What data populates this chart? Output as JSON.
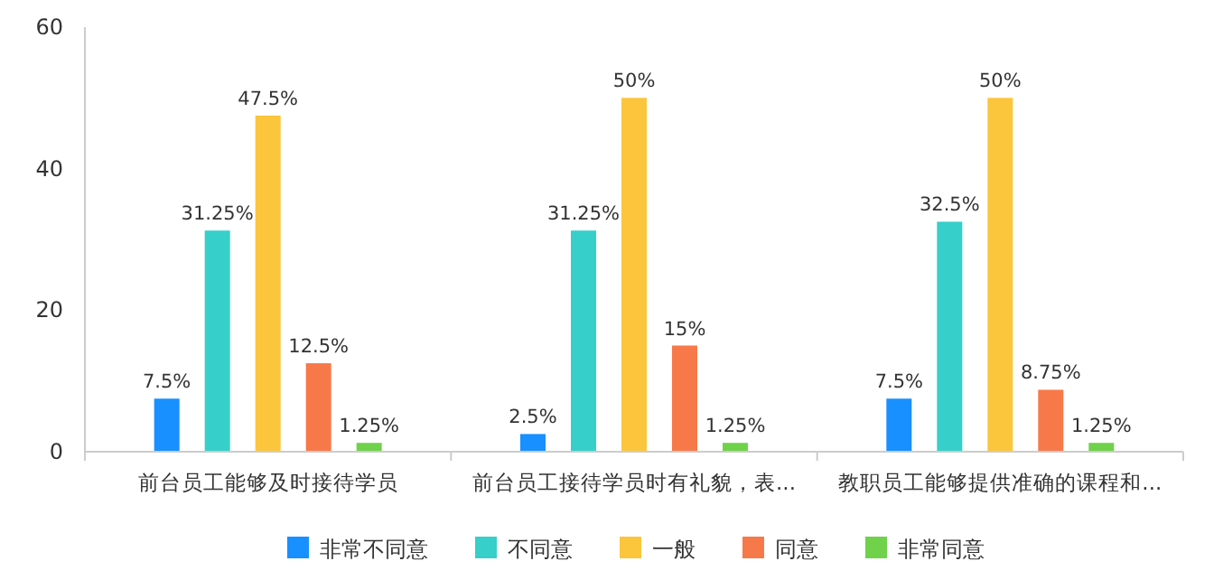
{
  "chart_data": {
    "type": "bar",
    "categories": [
      "前台员工能够及时接待学员",
      "前台员工接待学员时有礼貌，表...",
      "教职员工能够提供准确的课程和..."
    ],
    "series": [
      {
        "name": "非常不同意",
        "color": "#1890ff",
        "values": [
          7.5,
          2.5,
          7.5
        ],
        "value_labels": [
          "7.5%",
          "2.5%",
          "7.5%"
        ]
      },
      {
        "name": "不同意",
        "color": "#36cfc9",
        "values": [
          31.25,
          31.25,
          32.5
        ],
        "value_labels": [
          "31.25%",
          "31.25%",
          "32.5%"
        ]
      },
      {
        "name": "一般",
        "color": "#fbc63c",
        "values": [
          47.5,
          50,
          50
        ],
        "value_labels": [
          "47.5%",
          "50%",
          "50%"
        ]
      },
      {
        "name": "同意",
        "color": "#f7794a",
        "values": [
          12.5,
          15,
          8.75
        ],
        "value_labels": [
          "12.5%",
          "15%",
          "8.75%"
        ]
      },
      {
        "name": "非常同意",
        "color": "#6fd24a",
        "values": [
          1.25,
          1.25,
          1.25
        ],
        "value_labels": [
          "1.25%",
          "1.25%",
          "1.25%"
        ]
      }
    ],
    "ylim": [
      0,
      60
    ],
    "yticks": [
      0,
      20,
      40,
      60
    ],
    "grid": false,
    "legend": "bottom"
  }
}
